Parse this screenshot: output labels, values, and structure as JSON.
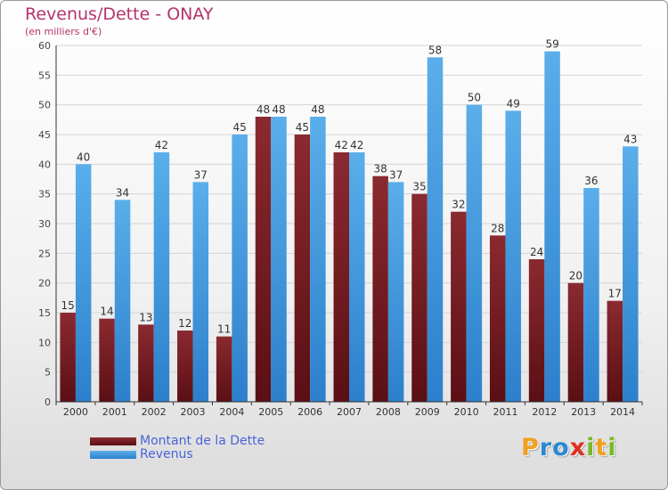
{
  "chart_data": {
    "type": "bar",
    "title": "Revenus/Dette - ONAY",
    "subtitle": "(en milliers d'€)",
    "categories": [
      "2000",
      "2001",
      "2002",
      "2003",
      "2004",
      "2005",
      "2006",
      "2007",
      "2008",
      "2009",
      "2010",
      "2011",
      "2012",
      "2013",
      "2014"
    ],
    "series": [
      {
        "name": "Montant de la Dette",
        "color": "#7a1c22",
        "values": [
          15,
          14,
          13,
          12,
          11,
          48,
          45,
          42,
          38,
          35,
          32,
          28,
          24,
          20,
          17
        ]
      },
      {
        "name": "Revenus",
        "color": "#4d9fe0",
        "values": [
          40,
          34,
          42,
          37,
          45,
          48,
          48,
          42,
          37,
          58,
          50,
          49,
          59,
          36,
          43
        ]
      }
    ],
    "ylim": [
      0,
      60
    ],
    "yticks": [
      0,
      5,
      10,
      15,
      20,
      25,
      30,
      35,
      40,
      45,
      50,
      55,
      60
    ],
    "grid": true,
    "legend": "bottom-left"
  },
  "brand": {
    "letters": [
      {
        "char": "P",
        "color": "#f0a020"
      },
      {
        "char": "r",
        "color": "#2a8ad0"
      },
      {
        "char": "o",
        "color": "#2a8ad0"
      },
      {
        "char": "x",
        "color": "#e03020"
      },
      {
        "char": "i",
        "color": "#7ab828"
      },
      {
        "char": "t",
        "color": "#f0a020"
      },
      {
        "char": "i",
        "color": "#7ab828"
      }
    ]
  }
}
